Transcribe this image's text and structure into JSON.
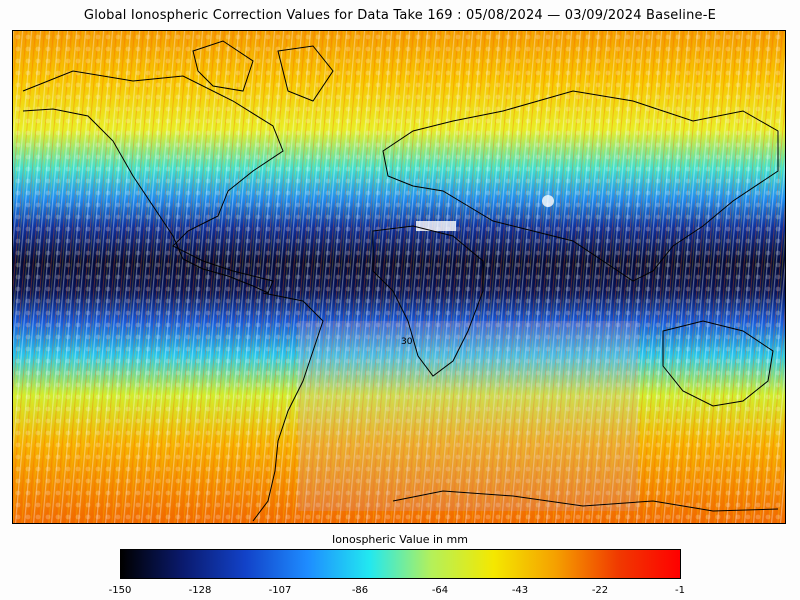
{
  "title": "Global Ionospheric Correction Values for Data Take 169 : 05/08/2024 — 03/09/2024 Baseline-E",
  "colorbar": {
    "label": "Ionospheric Value in mm",
    "ticks": [
      "-150",
      "-128",
      "-107",
      "-86",
      "-64",
      "-43",
      "-22",
      "-1"
    ],
    "colors": [
      "#000000",
      "#0a1a6e",
      "#1242c8",
      "#1e8cff",
      "#22e8f0",
      "#b4f05a",
      "#f4e800",
      "#f5a000",
      "#f03a00",
      "#ff0000"
    ]
  },
  "chart_data": {
    "type": "heatmap",
    "title": "Global Ionospheric Correction Values for Data Take 169 : 05/08/2024 — 03/09/2024 Baseline-E",
    "colorbar_label": "Ionospheric Value in mm",
    "value_range": [
      -150,
      -1
    ],
    "colorbar_ticks": [
      -150,
      -128,
      -107,
      -86,
      -64,
      -43,
      -22,
      -1
    ],
    "map_labels": [
      "30"
    ],
    "latitude_bands": [
      {
        "band": "high northern latitudes",
        "approx_value": -15
      },
      {
        "band": "northern mid latitudes",
        "approx_value": -50
      },
      {
        "band": "northern low latitudes",
        "approx_value": -110
      },
      {
        "band": "equatorial",
        "approx_value": -140
      },
      {
        "band": "southern low latitudes",
        "approx_value": -90
      },
      {
        "band": "southern mid latitudes",
        "approx_value": -20
      },
      {
        "band": "high southern latitudes",
        "approx_value": -12
      }
    ]
  }
}
